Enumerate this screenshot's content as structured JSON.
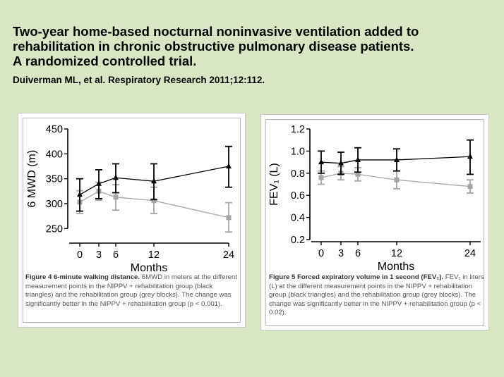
{
  "slide": {
    "title_lines": [
      "Two-year home-based nocturnal noninvasive ventilation added to",
      "rehabilitation in chronic obstructive pulmonary disease patients.",
      "A randomized controlled trial."
    ],
    "citation": "Duiverman ML, et al. Respiratory Research 2011;12:112."
  },
  "figures": [
    {
      "caption_label": "Figure 4 6-minute walking distance.",
      "caption_text": " 6MWD in meters at the different measurement points in the NIPPV + rehabilitation group (black triangles) and the rehabilitation group (grey blocks). The change was significantly better in the NIPPV + rehabilitation group (p < 0.001)."
    },
    {
      "caption_label": "Figure 5 Forced expiratory volume in 1 second (FEV₁).",
      "caption_text": " FEV₁ in liters (L) at the different measurement points in the NIPPV + rehabilitation group (black triangles) and the rehabilitation group (grey blocks). The change was significantly better in the NIPPV + rehabilitation group (p < 0.02)."
    }
  ],
  "chart_data": [
    {
      "type": "line",
      "xlabel": "Months",
      "ylabel": "6 MWD (m)",
      "x": [
        0,
        3,
        6,
        12,
        24
      ],
      "xticks": [
        "0",
        "3",
        "6",
        "12",
        "24"
      ],
      "ylim": [
        225,
        450
      ],
      "yticks": [
        "250",
        "300",
        "350",
        "400",
        "450"
      ],
      "series": [
        {
          "color": "#000000",
          "marker": "triangle",
          "values": [
            318,
            340,
            352,
            345,
            375
          ],
          "error": [
            [
              285,
              350
            ],
            [
              310,
              368
            ],
            [
              322,
              380
            ],
            [
              308,
              380
            ],
            [
              333,
              415
            ]
          ]
        },
        {
          "color": "#a6a6a6",
          "marker": "square",
          "values": [
            303,
            325,
            313,
            306,
            272
          ],
          "error": [
            [
              280,
              326
            ],
            [
              307,
              343
            ],
            [
              287,
              338
            ],
            [
              280,
              333
            ],
            [
              243,
              302
            ]
          ]
        }
      ]
    },
    {
      "type": "line",
      "xlabel": "Months",
      "ylabel": "FEV₁ (L)",
      "x": [
        0,
        3,
        6,
        12,
        24
      ],
      "xticks": [
        "0",
        "3",
        "6",
        "12",
        "24"
      ],
      "ylim": [
        0.2,
        1.2
      ],
      "yticks": [
        "0.2",
        "0.4",
        "0.6",
        "0.8",
        "1.0",
        "1.2"
      ],
      "series": [
        {
          "color": "#000000",
          "marker": "triangle",
          "values": [
            0.9,
            0.89,
            0.92,
            0.92,
            0.95
          ],
          "error": [
            [
              0.8,
              1.0
            ],
            [
              0.79,
              0.99
            ],
            [
              0.81,
              1.03
            ],
            [
              0.82,
              1.02
            ],
            [
              0.79,
              1.1
            ]
          ]
        },
        {
          "color": "#a6a6a6",
          "marker": "square",
          "values": [
            0.76,
            0.8,
            0.79,
            0.74,
            0.68
          ],
          "error": [
            [
              0.7,
              0.82
            ],
            [
              0.74,
              0.86
            ],
            [
              0.73,
              0.85
            ],
            [
              0.66,
              0.82
            ],
            [
              0.62,
              0.74
            ]
          ]
        }
      ]
    }
  ]
}
